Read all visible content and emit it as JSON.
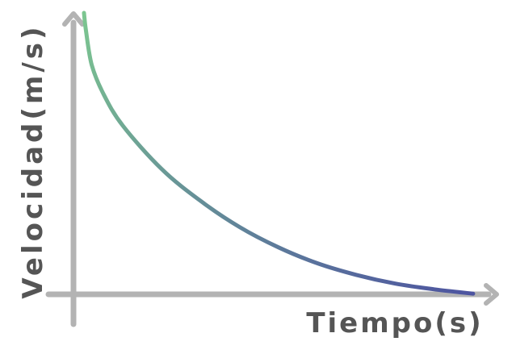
{
  "chart_data": {
    "type": "line",
    "title": "",
    "xlabel": "Tiempo(s)",
    "ylabel": "Velocidad(m/s)",
    "grid": false,
    "legend": "none",
    "tick_labels": false,
    "series": [
      {
        "shape": "decaying curve",
        "x": [
          0.0,
          0.05,
          0.2,
          0.5,
          1.0,
          2.0,
          3.0,
          4.0,
          5.0,
          6.0,
          7.0,
          8.0,
          9.0,
          10.0
        ],
        "values": [
          10.0,
          9.4,
          8.2,
          7.2,
          6.1,
          4.6,
          3.5,
          2.6,
          1.9,
          1.35,
          0.95,
          0.65,
          0.45,
          0.3
        ],
        "color_start": "#7cc690",
        "color_end": "#4d54a0"
      }
    ],
    "xlim": [
      0,
      10.5
    ],
    "ylim": [
      0,
      10.5
    ]
  },
  "colors": {
    "axis": "#b3b3b3",
    "label": "#555555"
  }
}
